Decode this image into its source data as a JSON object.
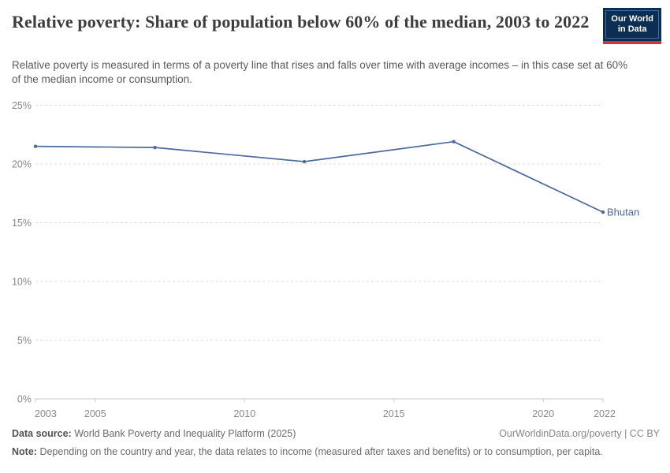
{
  "header": {
    "title": "Relative poverty: Share of population below 60% of the median, 2003 to 2022",
    "subtitle": "Relative poverty is measured in terms of a poverty line that rises and falls over time with average incomes – in this case set at 60% of the median income or consumption.",
    "logo": {
      "line1": "Our World",
      "line2": "in Data",
      "bg_color": "#0d2e54",
      "accent_color": "#d0343a"
    }
  },
  "chart_data": {
    "type": "line",
    "title": "Relative poverty: Share of population below 60% of the median, 2003 to 2022",
    "series": [
      {
        "name": "Bhutan",
        "x": [
          2003,
          2007,
          2012,
          2017,
          2022
        ],
        "values": [
          21.5,
          21.4,
          20.2,
          21.9,
          15.9
        ],
        "color": "#4c6a9c"
      }
    ],
    "x_ticks": [
      2003,
      2005,
      2010,
      2015,
      2020,
      2022
    ],
    "y_ticks": [
      0,
      5,
      10,
      15,
      20,
      25
    ],
    "y_tick_suffix": "%",
    "xlim": [
      2003,
      2022
    ],
    "ylim": [
      0,
      25
    ],
    "grid": "horizontal-dashed",
    "legend_position": "end-of-line",
    "colors": {
      "gridline": "#dcdcdc",
      "axis": "#c8c8c8",
      "tick_label": "#878787"
    }
  },
  "footer": {
    "data_source_label": "Data source:",
    "data_source_text": "World Bank Poverty and Inequality Platform (2025)",
    "attribution_link": "OurWorldinData.org/poverty",
    "attribution_license": " | CC BY",
    "note_label": "Note:",
    "note_text": "Depending on the country and year, the data relates to income (measured after taxes and benefits) or to consumption, per capita."
  }
}
